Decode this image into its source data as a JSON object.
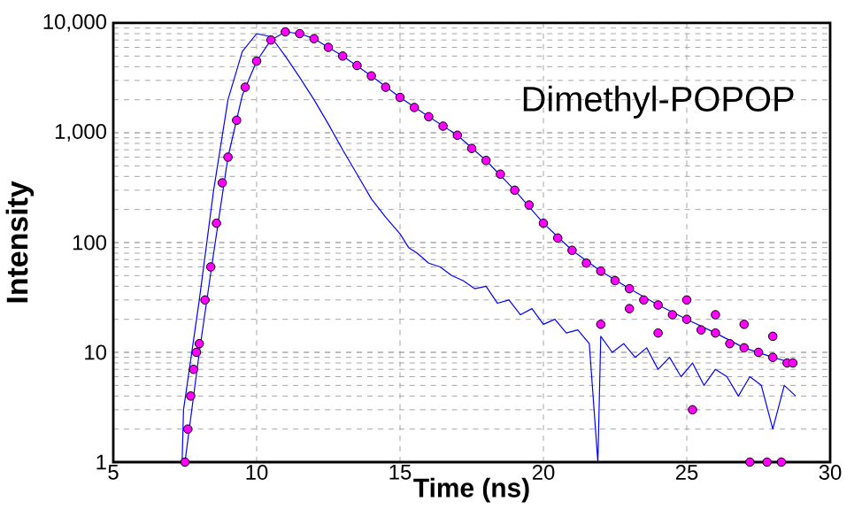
{
  "chart_data": {
    "type": "line",
    "xlabel": "Time (ns)",
    "ylabel": "Intensity",
    "annotations": [
      "Dimethyl-POPOP"
    ],
    "log": "y",
    "grid": true,
    "xlim": [
      5,
      30
    ],
    "xticks": [
      5,
      10,
      15,
      20,
      25,
      30
    ],
    "ylim": [
      1,
      10000
    ],
    "yticks": [
      1,
      10,
      100,
      {
        "value": 1000,
        "label": "1,000"
      },
      {
        "value": 10000,
        "label": "10,000"
      }
    ],
    "series": [
      {
        "color": "#0000ff",
        "line_style": "solid",
        "x": [
          7.4,
          7.45,
          8,
          8.5,
          9,
          9.5,
          10,
          10.5,
          11,
          11.5,
          12,
          12.5,
          13,
          13.5,
          14,
          14.5,
          15,
          15.3,
          15.6,
          16,
          16.4,
          16.8,
          17.2,
          17.6,
          18,
          18.4,
          18.8,
          19.2,
          19.6,
          20,
          20.4,
          20.8,
          21.2,
          21.6,
          21.9,
          22,
          22.4,
          22.8,
          23.2,
          23.6,
          24,
          24.4,
          24.8,
          25.2,
          25.6,
          26,
          26.4,
          26.8,
          27.2,
          27.6,
          28,
          28.4,
          28.8
        ],
        "values": [
          1,
          3,
          30,
          300,
          2000,
          5500,
          8000,
          7500,
          5000,
          3200,
          2000,
          1200,
          700,
          420,
          250,
          170,
          120,
          90,
          80,
          65,
          60,
          50,
          45,
          38,
          40,
          28,
          30,
          22,
          25,
          18,
          20,
          15,
          16,
          12,
          1,
          14,
          10,
          12,
          9,
          11,
          7,
          9,
          6,
          8,
          5,
          7,
          6,
          4,
          6,
          5,
          2,
          5,
          4
        ]
      },
      {
        "type": "scatter",
        "color": "#ff00ff",
        "marker": "circle",
        "x": [
          7.5,
          7.6,
          7.7,
          7.8,
          7.9,
          8,
          8.2,
          8.4,
          8.6,
          8.8,
          9,
          9.3,
          9.6,
          10,
          10.5,
          11,
          11.5,
          12,
          12.5,
          13,
          13.5,
          14,
          14.5,
          15,
          15.5,
          16,
          16.5,
          17,
          17.5,
          18,
          18.5,
          19,
          19.5,
          20,
          20.5,
          21,
          21.5,
          22,
          22,
          22.5,
          23,
          23,
          23.5,
          24,
          24,
          24.5,
          25,
          25,
          25.5,
          26,
          26,
          26.5,
          27,
          27,
          27.5,
          28,
          28,
          28.5,
          28.7,
          25.2,
          27.2,
          27.8,
          28.3
        ],
        "values": [
          1,
          2,
          4,
          7,
          10,
          12,
          30,
          60,
          150,
          350,
          600,
          1300,
          2600,
          4500,
          7000,
          8300,
          8000,
          7200,
          6000,
          5000,
          4100,
          3300,
          2600,
          2100,
          1700,
          1400,
          1150,
          950,
          720,
          560,
          420,
          300,
          220,
          150,
          110,
          85,
          65,
          55,
          18,
          45,
          38,
          25,
          30,
          27,
          15,
          22,
          20,
          30,
          16,
          15,
          22,
          12,
          11,
          18,
          10,
          9,
          14,
          8,
          8,
          3,
          1,
          1,
          1
        ]
      },
      {
        "color": "#0000ff",
        "line_style": "solid",
        "x": [
          7.5,
          8,
          8.5,
          9,
          9.5,
          10,
          10.5,
          11,
          11.5,
          12,
          13,
          14,
          15,
          16,
          17,
          18,
          19,
          20,
          21,
          22,
          23,
          24,
          25,
          26,
          27,
          28,
          28.7
        ],
        "values": [
          1,
          10,
          80,
          600,
          2200,
          4500,
          7000,
          8300,
          8000,
          7200,
          5000,
          3300,
          2100,
          1400,
          950,
          560,
          300,
          150,
          85,
          55,
          38,
          27,
          20,
          15,
          11,
          9,
          8
        ]
      }
    ]
  }
}
